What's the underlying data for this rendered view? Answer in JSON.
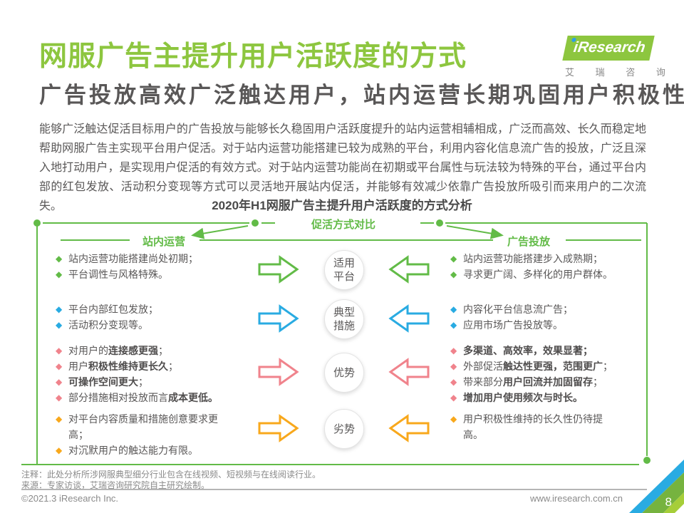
{
  "header": {
    "title": "网服广告主提升用户活跃度的方式",
    "subtitle": "广告投放高效广泛触达用户，站内运营长期巩固用户积极性",
    "logo": {
      "i_dot_color": "#2E9FE6",
      "brand": "iResearch",
      "caption": "艾 瑞 咨 询"
    }
  },
  "intro": {
    "text": "能够广泛触达促活目标用户的广告投放与能够长久稳固用户活跃度提升的站内运营相辅相成，广泛而高效、长久而稳定地帮助网服广告主实现平台用户促活。对于站内运营功能搭建已较为成熟的平台，利用内容化信息流广告的投放，广泛且深入地打动用户，是实现用户促活的有效方式。对于站内运营功能尚在初期或平台属性与玩法较为特殊的平台，通过平台内部的红包发放、活动积分变现等方式可以灵活地开展站内促活，并能够有效减少依靠广告投放所吸引而来用户的二次流失。"
  },
  "diagram": {
    "title": "2020年H1网服广告主提升用户活跃度的方式分析",
    "compare_label": "促活方式对比",
    "left_header": "站内运营",
    "right_header": "广告投放",
    "frame_color": "#62BB47",
    "rows": [
      {
        "stage": [
          "适用",
          "平台"
        ],
        "color": "#62BB47",
        "left": [
          [
            {
              "t": "站内运营功能搭建尚处初期；"
            }
          ],
          [
            {
              "t": "平台调性与风格特殊。"
            }
          ]
        ],
        "right": [
          [
            {
              "t": "站内运营功能搭建步入成熟期；"
            }
          ],
          [
            {
              "t": "寻求更广阔、多样化的用户群体。"
            }
          ]
        ]
      },
      {
        "stage": [
          "典型",
          "措施"
        ],
        "color": "#29ABE2",
        "left": [
          [
            {
              "t": "平台内部红包发放；"
            }
          ],
          [
            {
              "t": "活动积分变现等。"
            }
          ]
        ],
        "right": [
          [
            {
              "t": "内容化平台信息流广告；"
            }
          ],
          [
            {
              "t": "应用市场广告投放等。"
            }
          ]
        ]
      },
      {
        "stage": [
          "优势"
        ],
        "color": "#F0838C",
        "left": [
          [
            {
              "t": "对用户的"
            },
            {
              "t": "连接感更强",
              "b": true
            },
            {
              "t": "；"
            }
          ],
          [
            {
              "t": "用户"
            },
            {
              "t": "积极性维持更长久",
              "b": true
            },
            {
              "t": "；"
            }
          ],
          [
            {
              "t": "可操作空间更大",
              "b": true
            },
            {
              "t": "；"
            }
          ],
          [
            {
              "t": "部分措施相对投放而言"
            },
            {
              "t": "成本更低。",
              "b": true
            }
          ]
        ],
        "right": [
          [
            {
              "t": "多渠道、高效率，效果显著；",
              "b": true
            }
          ],
          [
            {
              "t": "外部促活"
            },
            {
              "t": "触达性更强，范围更广",
              "b": true
            },
            {
              "t": "；"
            }
          ],
          [
            {
              "t": "带来部分"
            },
            {
              "t": "用户回流并加固留存",
              "b": true
            },
            {
              "t": "；"
            }
          ],
          [
            {
              "t": "增加用户使用频次与时长。",
              "b": true
            }
          ]
        ]
      },
      {
        "stage": [
          "劣势"
        ],
        "color": "#F8A81C",
        "left": [
          [
            {
              "t": "对平台内容质量和措施创意要求更高；"
            }
          ],
          [
            {
              "t": "对沉默用户的触达能力有限。"
            }
          ]
        ],
        "right": [
          [
            {
              "t": "用户积极性维持的长久性仍待提高。"
            }
          ]
        ]
      }
    ]
  },
  "notes": {
    "annotation": "注释：此处分析所涉网服典型细分行业包含在线视频、短视频与在线阅读行业。",
    "source": "来源：专家访谈，艾瑞咨询研究院自主研究绘制。"
  },
  "footer": {
    "copyright": "©2021.3 iResearch Inc.",
    "website": "www.iresearch.com.cn",
    "page_number": "8",
    "corner_colors": {
      "blue": "#29ABE2",
      "green": "#76B33F",
      "light_green": "#A6CE39"
    }
  }
}
